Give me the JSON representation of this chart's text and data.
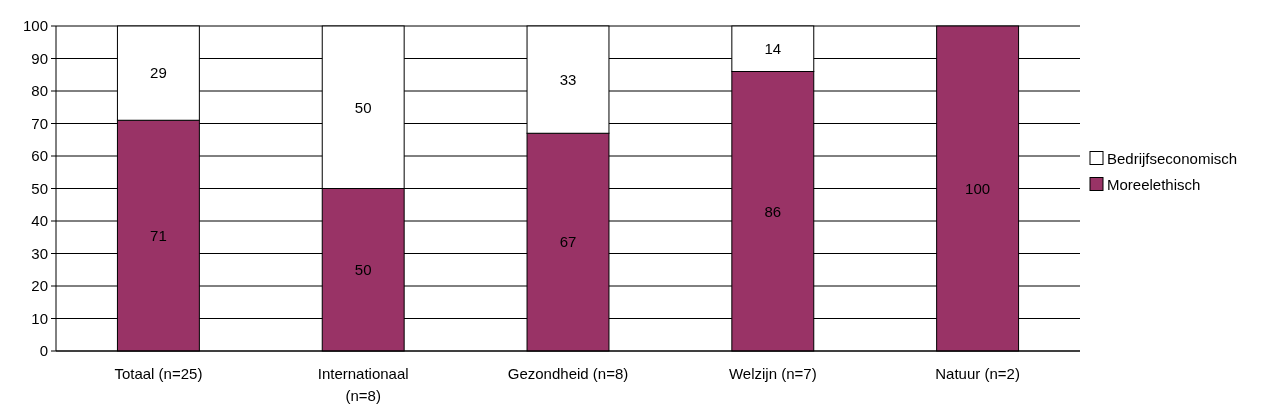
{
  "chart_data": {
    "type": "bar",
    "stacked": true,
    "categories": [
      "Totaal (n=25)",
      "Internationaal (n=8)",
      "Gezondheid (n=8)",
      "Welzijn (n=7)",
      "Natuur (n=2)"
    ],
    "series": [
      {
        "name": "Moreelethisch",
        "color": "#993366",
        "values": [
          71,
          50,
          67,
          86,
          100
        ]
      },
      {
        "name": "Bedrijfseconomisch",
        "color": "#ffffff",
        "values": [
          29,
          50,
          33,
          14,
          null
        ]
      }
    ],
    "ylim": [
      0,
      100
    ],
    "yticks": [
      0,
      10,
      20,
      30,
      40,
      50,
      60,
      70,
      80,
      90,
      100
    ],
    "grid": "y",
    "legend": "right",
    "data_labels": true
  }
}
